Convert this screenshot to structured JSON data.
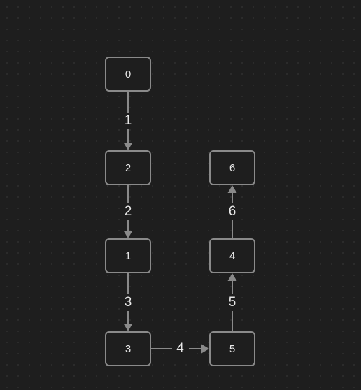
{
  "colors": {
    "background": "#1e1e1e",
    "node_border": "#8a8a8a",
    "edge": "#8a8a8a",
    "text": "#e8e8e8"
  },
  "nodes": [
    {
      "id": "n0",
      "label": "0"
    },
    {
      "id": "n2",
      "label": "2"
    },
    {
      "id": "n1",
      "label": "1"
    },
    {
      "id": "n3",
      "label": "3"
    },
    {
      "id": "n5",
      "label": "5"
    },
    {
      "id": "n4",
      "label": "4"
    },
    {
      "id": "n6",
      "label": "6"
    }
  ],
  "edges": [
    {
      "from": "n0",
      "to": "n2",
      "label": "1"
    },
    {
      "from": "n2",
      "to": "n1",
      "label": "2"
    },
    {
      "from": "n1",
      "to": "n3",
      "label": "3"
    },
    {
      "from": "n3",
      "to": "n5",
      "label": "4"
    },
    {
      "from": "n5",
      "to": "n4",
      "label": "5"
    },
    {
      "from": "n4",
      "to": "n6",
      "label": "6"
    }
  ]
}
